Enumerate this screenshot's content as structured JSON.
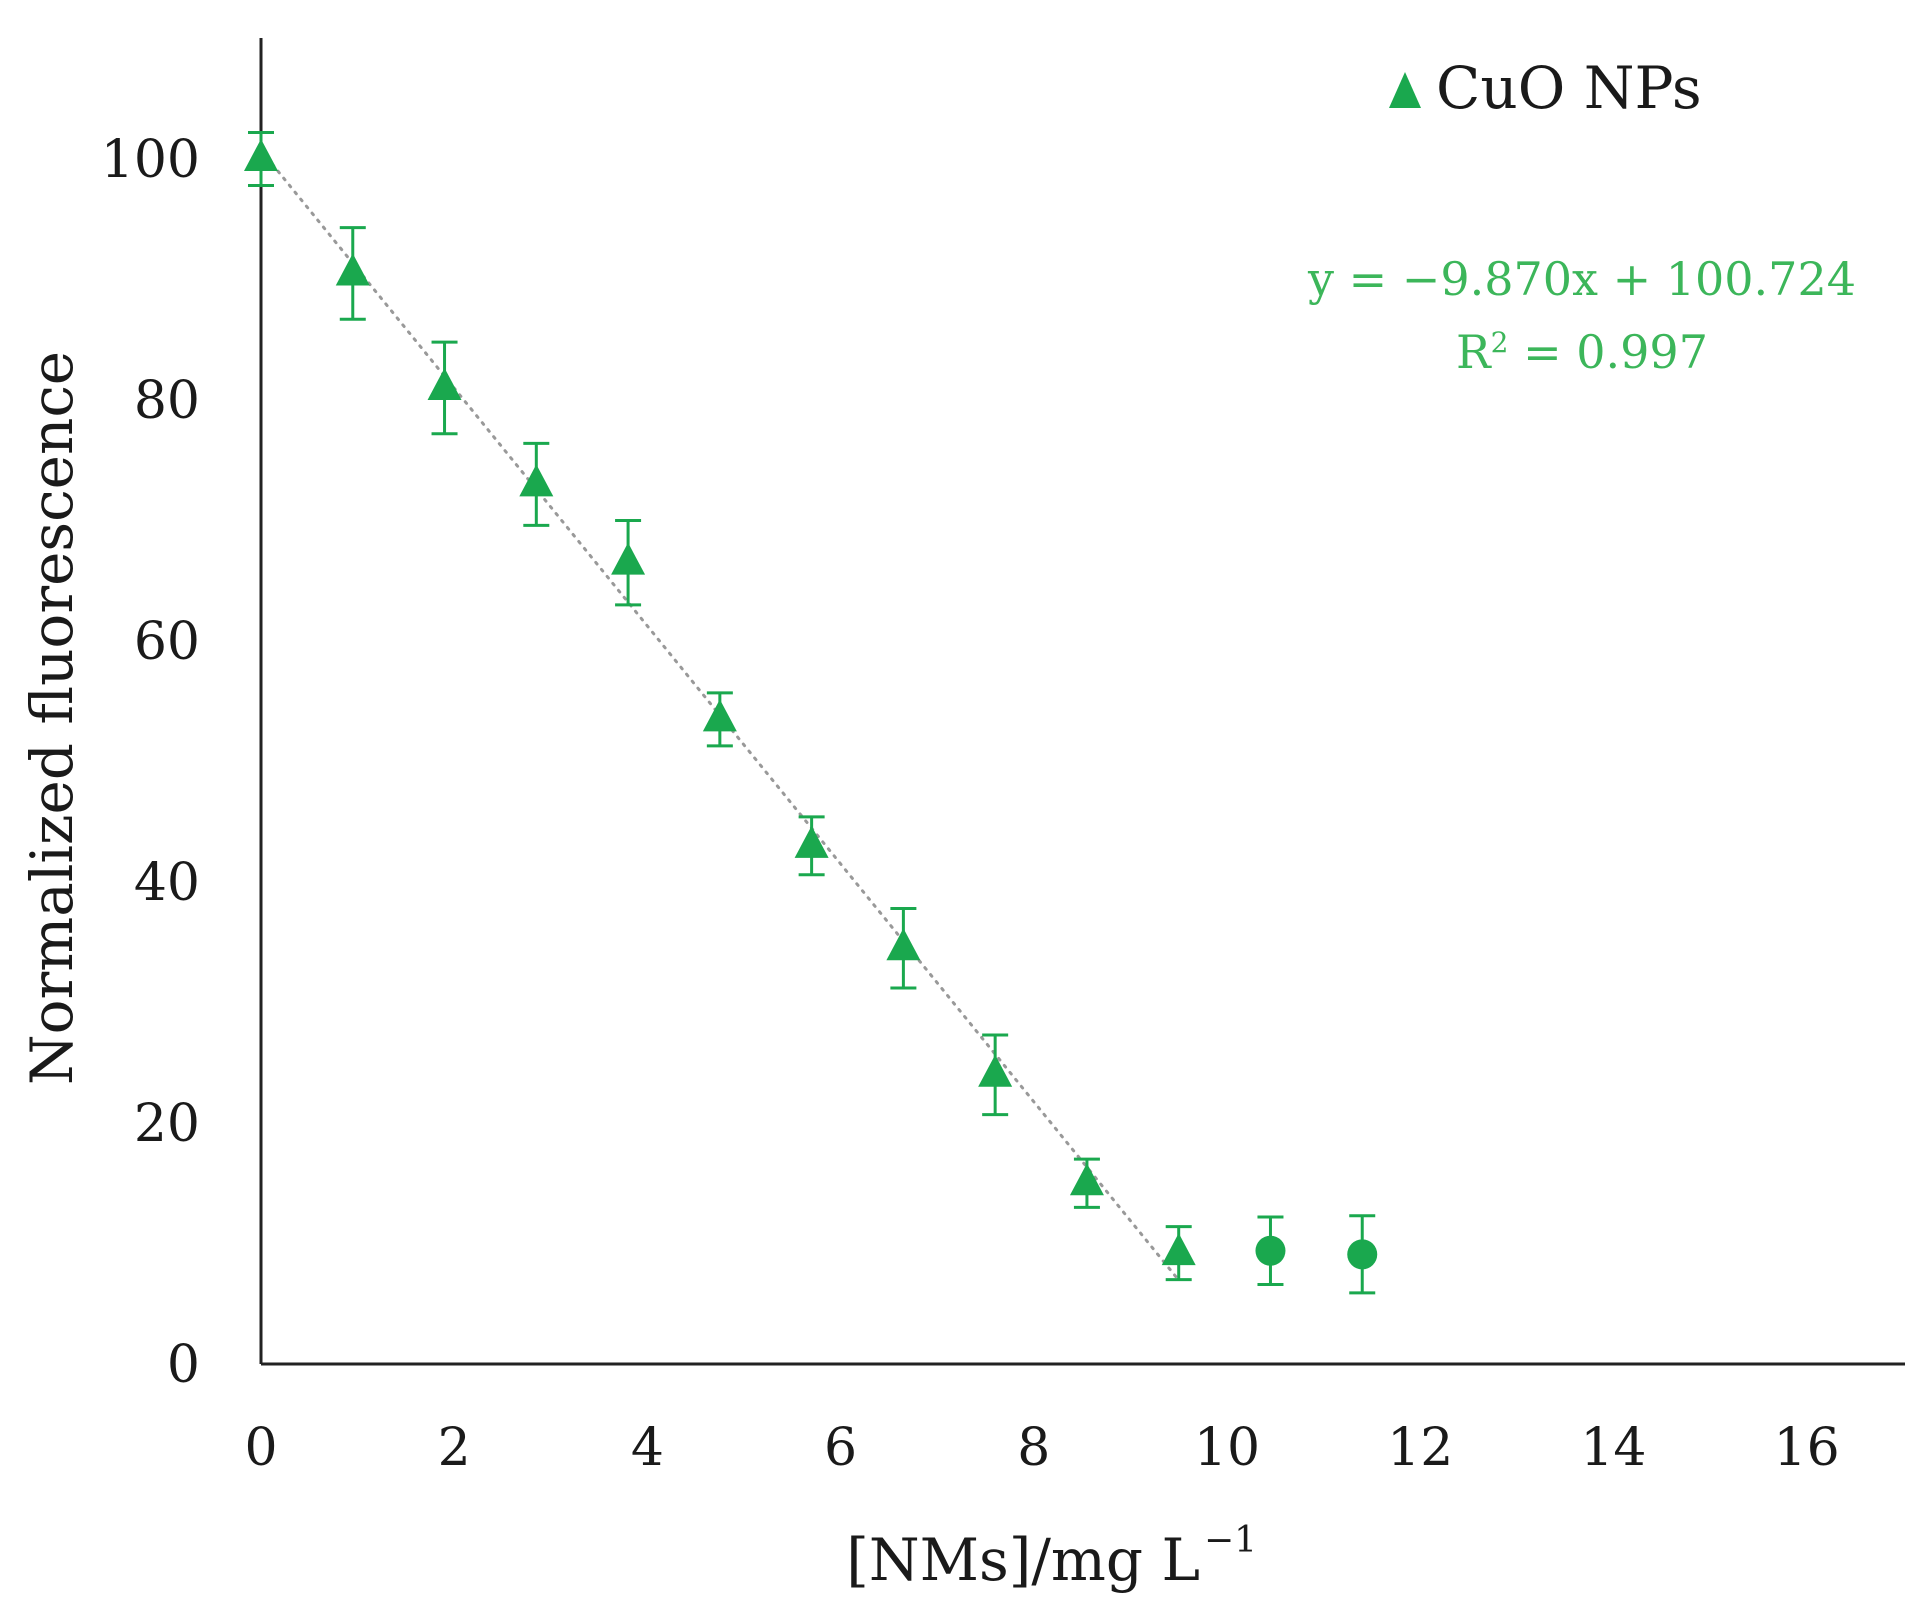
{
  "chart_data": {
    "type": "scatter",
    "title": "",
    "xlabel": "[NMs]/mg L",
    "xlabel_superscript": "−1",
    "ylabel": "Normalized fluorescence",
    "xlim": [
      0,
      17
    ],
    "ylim": [
      0,
      110
    ],
    "xticks": [
      "0",
      "2",
      "4",
      "6",
      "8",
      "10",
      "12",
      "14",
      "16"
    ],
    "yticks": [
      "0",
      "20",
      "40",
      "60",
      "80",
      "100"
    ],
    "xtick_values": [
      0,
      2,
      4,
      6,
      8,
      10,
      12,
      14,
      16
    ],
    "ytick_values": [
      0,
      20,
      40,
      60,
      80,
      100
    ],
    "grid": false,
    "legend_position": "top-right",
    "series": [
      {
        "name": "CuO NPs",
        "marker": "triangle",
        "color": "#1aa84e",
        "x": [
          0,
          0.95,
          1.9,
          2.85,
          3.8,
          4.75,
          5.7,
          6.65,
          7.6,
          8.55,
          9.5
        ],
        "y": [
          100,
          90.5,
          81,
          73,
          66.5,
          53.5,
          43,
          34.5,
          24,
          15,
          9.2
        ],
        "err": [
          2.2,
          3.8,
          3.8,
          3.4,
          3.5,
          2.2,
          2.4,
          3.3,
          3.3,
          2.0,
          2.2
        ]
      },
      {
        "name": "",
        "marker": "circle",
        "color": "#1aa84e",
        "x": [
          10.45,
          11.4
        ],
        "y": [
          9.4,
          9.1
        ],
        "err": [
          2.8,
          3.2
        ]
      }
    ],
    "trendline": {
      "slope": -9.87,
      "intercept": 100.724,
      "x_range": [
        0,
        9.5
      ],
      "style": "dotted",
      "color": "#999999"
    },
    "annotations": {
      "equation": "y = −9.870x + 100.724",
      "r2_prefix": "R",
      "r2_sup": "2",
      "r2_rest": " = 0.997",
      "color": "#3cb65a"
    }
  }
}
